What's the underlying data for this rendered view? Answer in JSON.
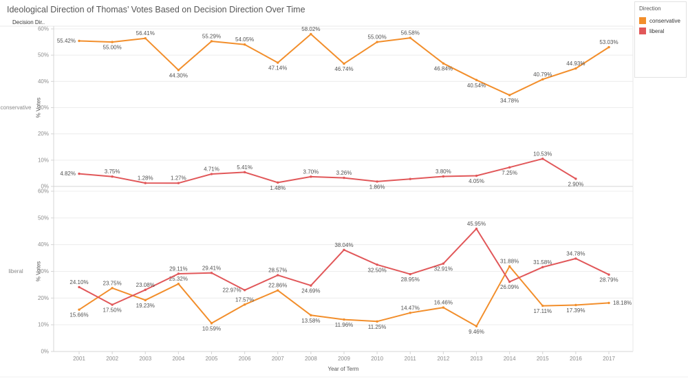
{
  "title": "Ideological Direction of Thomas’ Votes Based on Decision Direction Over Time",
  "col_header": "Decision Dir..",
  "legend": {
    "title": "Direction",
    "items": [
      {
        "label": "conservative",
        "color": "#F28E2B"
      },
      {
        "label": "liberal",
        "color": "#E15759"
      }
    ]
  },
  "chart_data": {
    "type": "line",
    "x": [
      2001,
      2002,
      2003,
      2004,
      2005,
      2006,
      2007,
      2008,
      2009,
      2010,
      2011,
      2012,
      2013,
      2014,
      2015,
      2016,
      2017
    ],
    "xlabel": "Year of Term",
    "ylabel": "% Votes",
    "ylim": [
      0,
      60
    ],
    "yticks": [
      "60%",
      "50%",
      "40%",
      "30%",
      "20%",
      "10%",
      "0%"
    ],
    "grid": true,
    "legend_position": "top-right",
    "panels": [
      {
        "row_label": "conservative",
        "series": [
          {
            "name": "conservative",
            "color": "#F28E2B",
            "points": [
              {
                "x": 2001,
                "y": 55.42,
                "label": "55.42%",
                "pos": "left"
              },
              {
                "x": 2002,
                "y": 55.0,
                "label": "55.00%",
                "pos": "below"
              },
              {
                "x": 2003,
                "y": 56.41,
                "label": "56.41%",
                "pos": "above"
              },
              {
                "x": 2004,
                "y": 44.3,
                "label": "44.30%",
                "pos": "below"
              },
              {
                "x": 2005,
                "y": 55.29,
                "label": "55.29%",
                "pos": "above"
              },
              {
                "x": 2006,
                "y": 54.05,
                "label": "54.05%",
                "pos": "above"
              },
              {
                "x": 2007,
                "y": 47.14,
                "label": "47.14%",
                "pos": "below"
              },
              {
                "x": 2008,
                "y": 58.02,
                "label": "58.02%",
                "pos": "above"
              },
              {
                "x": 2009,
                "y": 46.74,
                "label": "46.74%",
                "pos": "below"
              },
              {
                "x": 2010,
                "y": 55.0,
                "label": "55.00%",
                "pos": "above"
              },
              {
                "x": 2011,
                "y": 56.58,
                "label": "56.58%",
                "pos": "above"
              },
              {
                "x": 2012,
                "y": 46.84,
                "label": "46.84%",
                "pos": "below"
              },
              {
                "x": 2013,
                "y": 40.54,
                "label": "40.54%",
                "pos": "below"
              },
              {
                "x": 2014,
                "y": 34.78,
                "label": "34.78%",
                "pos": "below"
              },
              {
                "x": 2015,
                "y": 40.79,
                "label": "40.79%",
                "pos": "above"
              },
              {
                "x": 2016,
                "y": 44.93,
                "label": "44.93%",
                "pos": "above"
              },
              {
                "x": 2017,
                "y": 53.03,
                "label": "53.03%",
                "pos": "above"
              }
            ]
          },
          {
            "name": "liberal",
            "color": "#E15759",
            "points": [
              {
                "x": 2001,
                "y": 4.82,
                "label": "4.82%",
                "pos": "left"
              },
              {
                "x": 2002,
                "y": 3.75,
                "label": "3.75%",
                "pos": "above"
              },
              {
                "x": 2003,
                "y": 1.28,
                "label": "1.28%",
                "pos": "above"
              },
              {
                "x": 2004,
                "y": 1.27,
                "label": "1.27%",
                "pos": "above"
              },
              {
                "x": 2005,
                "y": 4.71,
                "label": "4.71%",
                "pos": "above"
              },
              {
                "x": 2006,
                "y": 5.41,
                "label": "5.41%",
                "pos": "above"
              },
              {
                "x": 2007,
                "y": 1.48,
                "label": "1.48%",
                "pos": "below"
              },
              {
                "x": 2008,
                "y": 3.7,
                "label": "3.70%",
                "pos": "above"
              },
              {
                "x": 2009,
                "y": 3.26,
                "label": "3.26%",
                "pos": "above"
              },
              {
                "x": 2010,
                "y": 1.86,
                "label": "1.86%",
                "pos": "below"
              },
              {
                "x": 2011,
                "y": 2.83,
                "label": "",
                "pos": "above"
              },
              {
                "x": 2012,
                "y": 3.8,
                "label": "3.80%",
                "pos": "above"
              },
              {
                "x": 2013,
                "y": 4.05,
                "label": "4.05%",
                "pos": "below"
              },
              {
                "x": 2014,
                "y": 7.25,
                "label": "7.25%",
                "pos": "below"
              },
              {
                "x": 2015,
                "y": 10.53,
                "label": "10.53%",
                "pos": "above"
              },
              {
                "x": 2016,
                "y": 2.9,
                "label": "2.90%",
                "pos": "below"
              }
            ]
          }
        ]
      },
      {
        "row_label": "liberal",
        "series": [
          {
            "name": "conservative",
            "color": "#F28E2B",
            "points": [
              {
                "x": 2001,
                "y": 15.66,
                "label": "15.66%",
                "pos": "below"
              },
              {
                "x": 2002,
                "y": 23.75,
                "label": "23.75%",
                "pos": "above"
              },
              {
                "x": 2003,
                "y": 19.23,
                "label": "19.23%",
                "pos": "below"
              },
              {
                "x": 2004,
                "y": 25.32,
                "label": "25.32%",
                "pos": "above"
              },
              {
                "x": 2005,
                "y": 10.59,
                "label": "10.59%",
                "pos": "below"
              },
              {
                "x": 2006,
                "y": 17.57,
                "label": "17.57%",
                "pos": "above"
              },
              {
                "x": 2007,
                "y": 22.86,
                "label": "22.86%",
                "pos": "above"
              },
              {
                "x": 2008,
                "y": 13.58,
                "label": "13.58%",
                "pos": "below"
              },
              {
                "x": 2009,
                "y": 11.96,
                "label": "11.96%",
                "pos": "below"
              },
              {
                "x": 2010,
                "y": 11.25,
                "label": "11.25%",
                "pos": "below"
              },
              {
                "x": 2011,
                "y": 14.47,
                "label": "14.47%",
                "pos": "above"
              },
              {
                "x": 2012,
                "y": 16.46,
                "label": "16.46%",
                "pos": "above"
              },
              {
                "x": 2013,
                "y": 9.46,
                "label": "9.46%",
                "pos": "below"
              },
              {
                "x": 2014,
                "y": 31.88,
                "label": "31.88%",
                "pos": "above"
              },
              {
                "x": 2015,
                "y": 17.11,
                "label": "17.11%",
                "pos": "below"
              },
              {
                "x": 2016,
                "y": 17.39,
                "label": "17.39%",
                "pos": "below"
              },
              {
                "x": 2017,
                "y": 18.18,
                "label": "18.18%",
                "pos": "right"
              }
            ]
          },
          {
            "name": "liberal",
            "color": "#E15759",
            "points": [
              {
                "x": 2001,
                "y": 24.1,
                "label": "24.10%",
                "pos": "above"
              },
              {
                "x": 2002,
                "y": 17.5,
                "label": "17.50%",
                "pos": "below"
              },
              {
                "x": 2003,
                "y": 23.08,
                "label": "23.08%",
                "pos": "above"
              },
              {
                "x": 2004,
                "y": 29.11,
                "label": "29.11%",
                "pos": "above"
              },
              {
                "x": 2005,
                "y": 29.41,
                "label": "29.41%",
                "pos": "above"
              },
              {
                "x": 2006,
                "y": 22.97,
                "label": "22.97%",
                "pos": "left"
              },
              {
                "x": 2007,
                "y": 28.57,
                "label": "28.57%",
                "pos": "above"
              },
              {
                "x": 2008,
                "y": 24.69,
                "label": "24.69%",
                "pos": "below"
              },
              {
                "x": 2009,
                "y": 38.04,
                "label": "38.04%",
                "pos": "above"
              },
              {
                "x": 2010,
                "y": 32.5,
                "label": "32.50%",
                "pos": "below"
              },
              {
                "x": 2011,
                "y": 28.95,
                "label": "28.95%",
                "pos": "below"
              },
              {
                "x": 2012,
                "y": 32.91,
                "label": "32.91%",
                "pos": "below"
              },
              {
                "x": 2013,
                "y": 45.95,
                "label": "45.95%",
                "pos": "above"
              },
              {
                "x": 2014,
                "y": 26.09,
                "label": "26.09%",
                "pos": "below"
              },
              {
                "x": 2015,
                "y": 31.58,
                "label": "31.58%",
                "pos": "above"
              },
              {
                "x": 2016,
                "y": 34.78,
                "label": "34.78%",
                "pos": "above"
              },
              {
                "x": 2017,
                "y": 28.79,
                "label": "28.79%",
                "pos": "below"
              }
            ]
          }
        ]
      }
    ]
  }
}
